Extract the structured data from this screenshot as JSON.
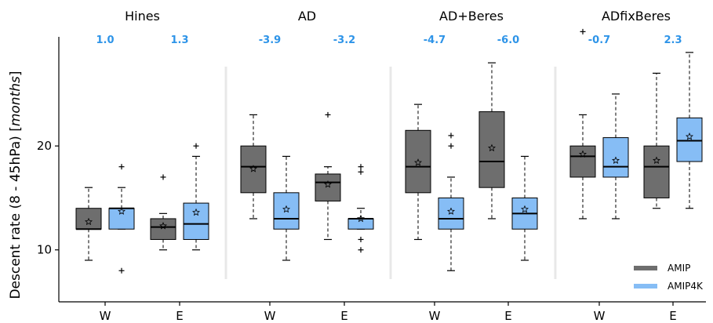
{
  "chart_data": {
    "type": "box",
    "ylabel": "Descent rate (8 - 45hPa) [",
    "ylabel_unit": "months",
    "ylabel_close": "]",
    "ylim": [
      5.0,
      30.5
    ],
    "yticks": [
      10,
      20
    ],
    "xtick_labels": [
      "W",
      "E",
      "W",
      "E",
      "W",
      "E",
      "W",
      "E"
    ],
    "grid": false,
    "legend_position": "lower-right",
    "colors": {
      "AMIP": "#6e6e6e",
      "AMIP4K": "#86bdf5",
      "diff_label": "#2e94e8",
      "divider": "#e8e8e8"
    },
    "legend": [
      "AMIP",
      "AMIP4K"
    ],
    "panels": [
      {
        "title": "Hines",
        "groups": [
          {
            "label": "W",
            "diff": "1.0",
            "boxes": [
              {
                "series": "AMIP",
                "min": 9,
                "q1": 12,
                "median": 12,
                "q3": 14,
                "max": 16,
                "mean": 12.7,
                "outliers": []
              },
              {
                "series": "AMIP4K",
                "min": 12,
                "q1": 12,
                "median": 14,
                "q3": 14,
                "max": 16,
                "mean": 13.7,
                "outliers": [
                  18,
                  8
                ]
              }
            ]
          },
          {
            "label": "E",
            "diff": "1.3",
            "boxes": [
              {
                "series": "AMIP",
                "min": 10,
                "q1": 11,
                "median": 12.2,
                "q3": 13,
                "max": 13.5,
                "mean": 12.3,
                "outliers": [
                  17
                ]
              },
              {
                "series": "AMIP4K",
                "min": 10,
                "q1": 11,
                "median": 12.5,
                "q3": 14.5,
                "max": 19,
                "mean": 13.6,
                "outliers": [
                  20
                ]
              }
            ]
          }
        ]
      },
      {
        "title": "AD",
        "groups": [
          {
            "label": "W",
            "diff": "-3.9",
            "boxes": [
              {
                "series": "AMIP",
                "min": 13,
                "q1": 15.5,
                "median": 18,
                "q3": 20,
                "max": 23,
                "mean": 17.8,
                "outliers": []
              },
              {
                "series": "AMIP4K",
                "min": 9,
                "q1": 12,
                "median": 13,
                "q3": 15.5,
                "max": 19,
                "mean": 13.9,
                "outliers": []
              }
            ]
          },
          {
            "label": "E",
            "diff": "-3.2",
            "boxes": [
              {
                "series": "AMIP",
                "min": 11,
                "q1": 14.7,
                "median": 16.5,
                "q3": 17.3,
                "max": 18,
                "mean": 16.3,
                "outliers": [
                  23
                ]
              },
              {
                "series": "AMIP4K",
                "min": 12,
                "q1": 12,
                "median": 13,
                "q3": 13,
                "max": 14,
                "mean": 13.0,
                "outliers": [
                  18,
                  17.5,
                  11,
                  10
                ]
              }
            ]
          }
        ]
      },
      {
        "title": "AD+Beres",
        "groups": [
          {
            "label": "W",
            "diff": "-4.7",
            "boxes": [
              {
                "series": "AMIP",
                "min": 11,
                "q1": 15.5,
                "median": 18,
                "q3": 21.5,
                "max": 24,
                "mean": 18.4,
                "outliers": []
              },
              {
                "series": "AMIP4K",
                "min": 8,
                "q1": 12,
                "median": 13,
                "q3": 15,
                "max": 17,
                "mean": 13.7,
                "outliers": [
                  21,
                  20
                ]
              }
            ]
          },
          {
            "label": "E",
            "diff": "-6.0",
            "boxes": [
              {
                "series": "AMIP",
                "min": 13,
                "q1": 16,
                "median": 18.5,
                "q3": 23.3,
                "max": 28,
                "mean": 19.8,
                "outliers": []
              },
              {
                "series": "AMIP4K",
                "min": 9,
                "q1": 12,
                "median": 13.5,
                "q3": 15,
                "max": 19,
                "mean": 13.9,
                "outliers": []
              }
            ]
          }
        ]
      },
      {
        "title": "ADfixBeres",
        "groups": [
          {
            "label": "W",
            "diff": "-0.7",
            "boxes": [
              {
                "series": "AMIP",
                "min": 13,
                "q1": 17,
                "median": 19,
                "q3": 20,
                "max": 23,
                "mean": 19.2,
                "outliers": [
                  31
                ]
              },
              {
                "series": "AMIP4K",
                "min": 13,
                "q1": 17,
                "median": 18,
                "q3": 20.8,
                "max": 25,
                "mean": 18.6,
                "outliers": []
              }
            ]
          },
          {
            "label": "E",
            "diff": "2.3",
            "boxes": [
              {
                "series": "AMIP",
                "min": 14,
                "q1": 15,
                "median": 18,
                "q3": 20,
                "max": 27,
                "mean": 18.6,
                "outliers": []
              },
              {
                "series": "AMIP4K",
                "min": 14,
                "q1": 18.5,
                "median": 20.5,
                "q3": 22.7,
                "max": 29,
                "mean": 20.9,
                "outliers": []
              }
            ]
          }
        ]
      }
    ]
  }
}
